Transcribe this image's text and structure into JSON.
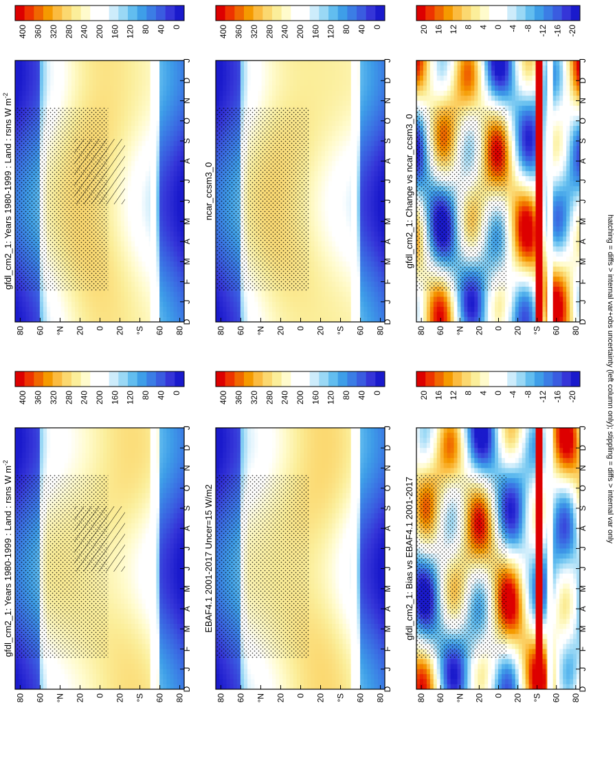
{
  "figure": {
    "footnote": "hatching = diffs > internal var+obs uncertainty (left column only); stippling = diffs > internal var only"
  },
  "month_labels": [
    "D",
    "J",
    "F",
    "M",
    "A",
    "M",
    "J",
    "J",
    "A",
    "S",
    "O",
    "N",
    "D",
    "J"
  ],
  "lat_labels": [
    "80",
    "60",
    "°N",
    "20",
    "0",
    "20",
    "°S",
    "60",
    "80"
  ],
  "chart_data": [
    {
      "id": "p1",
      "type": "heatmap",
      "title": "gfdl_cm2_1: Years 1980-1999 : Land : rsns W m",
      "title_sup": "-2",
      "x": [
        "D",
        "J",
        "F",
        "M",
        "A",
        "M",
        "J",
        "J",
        "A",
        "S",
        "O",
        "N",
        "D",
        "J"
      ],
      "y": [
        "80",
        "60",
        "°N",
        "20",
        "0",
        "20",
        "°S",
        "60",
        "80"
      ],
      "colorbar_ticks": [
        "400",
        "360",
        "320",
        "280",
        "240",
        "200",
        "160",
        "120",
        "80",
        "40",
        "0"
      ],
      "color_range": [
        0,
        400
      ]
    },
    {
      "id": "p2",
      "type": "heatmap",
      "title": "gfdl_cm2_1: Years 1980-1999 : Land : rsns W m",
      "title_sup": "-2",
      "x": [
        "D",
        "J",
        "F",
        "M",
        "A",
        "M",
        "J",
        "J",
        "A",
        "S",
        "O",
        "N",
        "D",
        "J"
      ],
      "y": [
        "80",
        "60",
        "°N",
        "20",
        "0",
        "20",
        "°S",
        "60",
        "80"
      ],
      "colorbar_ticks": [
        "400",
        "360",
        "320",
        "280",
        "240",
        "200",
        "160",
        "120",
        "80",
        "40",
        "0"
      ],
      "color_range": [
        0,
        400
      ]
    },
    {
      "id": "p3",
      "type": "heatmap",
      "title": "ncar_ccsm3_0",
      "x": [
        "D",
        "J",
        "F",
        "M",
        "A",
        "M",
        "J",
        "J",
        "A",
        "S",
        "O",
        "N",
        "D",
        "J"
      ],
      "y": [
        "80",
        "60",
        "°N",
        "20",
        "0",
        "20",
        "°S",
        "60",
        "80"
      ],
      "colorbar_ticks": [
        "400",
        "360",
        "320",
        "280",
        "240",
        "200",
        "160",
        "120",
        "80",
        "40",
        "0"
      ],
      "color_range": [
        0,
        400
      ]
    },
    {
      "id": "p4",
      "type": "heatmap",
      "title": "EBAF4.1 2001-2017 Uncer=15 W/m2",
      "x": [
        "D",
        "J",
        "F",
        "M",
        "A",
        "M",
        "J",
        "J",
        "A",
        "S",
        "O",
        "N",
        "D",
        "J"
      ],
      "y": [
        "80",
        "60",
        "°N",
        "20",
        "0",
        "20",
        "°S",
        "60",
        "80"
      ],
      "colorbar_ticks": [
        "400",
        "360",
        "320",
        "280",
        "240",
        "200",
        "160",
        "120",
        "80",
        "40",
        "0"
      ],
      "color_range": [
        0,
        400
      ]
    },
    {
      "id": "p5",
      "type": "heatmap",
      "title": "gfdl_cm2_1: Change vs ncar_ccsm3_0",
      "x": [
        "D",
        "J",
        "F",
        "M",
        "A",
        "M",
        "J",
        "J",
        "A",
        "S",
        "O",
        "N",
        "D",
        "J"
      ],
      "y": [
        "80",
        "60",
        "°N",
        "20",
        "0",
        "20",
        "°S",
        "60",
        "80"
      ],
      "colorbar_ticks": [
        "20",
        "16",
        "12",
        "8",
        "4",
        "0",
        "-4",
        "-8",
        "-12",
        "-16",
        "-20"
      ],
      "color_range": [
        -20,
        20
      ]
    },
    {
      "id": "p6",
      "type": "heatmap",
      "title": "gfdl_cm2_1: Bias vs EBAF4.1 2001-2017",
      "x": [
        "D",
        "J",
        "F",
        "M",
        "A",
        "M",
        "J",
        "J",
        "A",
        "S",
        "O",
        "N",
        "D",
        "J"
      ],
      "y": [
        "80",
        "60",
        "°N",
        "20",
        "0",
        "20",
        "°S",
        "60",
        "80"
      ],
      "colorbar_ticks": [
        "20",
        "16",
        "12",
        "8",
        "4",
        "0",
        "-4",
        "-8",
        "-12",
        "-16",
        "-20"
      ],
      "color_range": [
        -20,
        20
      ]
    }
  ],
  "colors": {
    "abs_scale": [
      "#dd0000",
      "#ee3300",
      "#f06800",
      "#f59a00",
      "#fbbb40",
      "#fbd870",
      "#fbee9a",
      "#fffbcc",
      "#ffffff",
      "#ffffff",
      "#cdecfb",
      "#9ad8f5",
      "#62bdef",
      "#3e9ee8",
      "#3b7de5",
      "#3a5ce0",
      "#3535d8",
      "#1a1acc"
    ],
    "diff_scale": [
      "#dd0000",
      "#ee3300",
      "#f06800",
      "#f59a00",
      "#fbbb40",
      "#fbd870",
      "#fbee9a",
      "#fffbcc",
      "#ffffff",
      "#ffffff",
      "#cdecfb",
      "#9ad8f5",
      "#62bdef",
      "#3e9ee8",
      "#3b7de5",
      "#3a5ce0",
      "#3535d8",
      "#1a1acc"
    ]
  }
}
